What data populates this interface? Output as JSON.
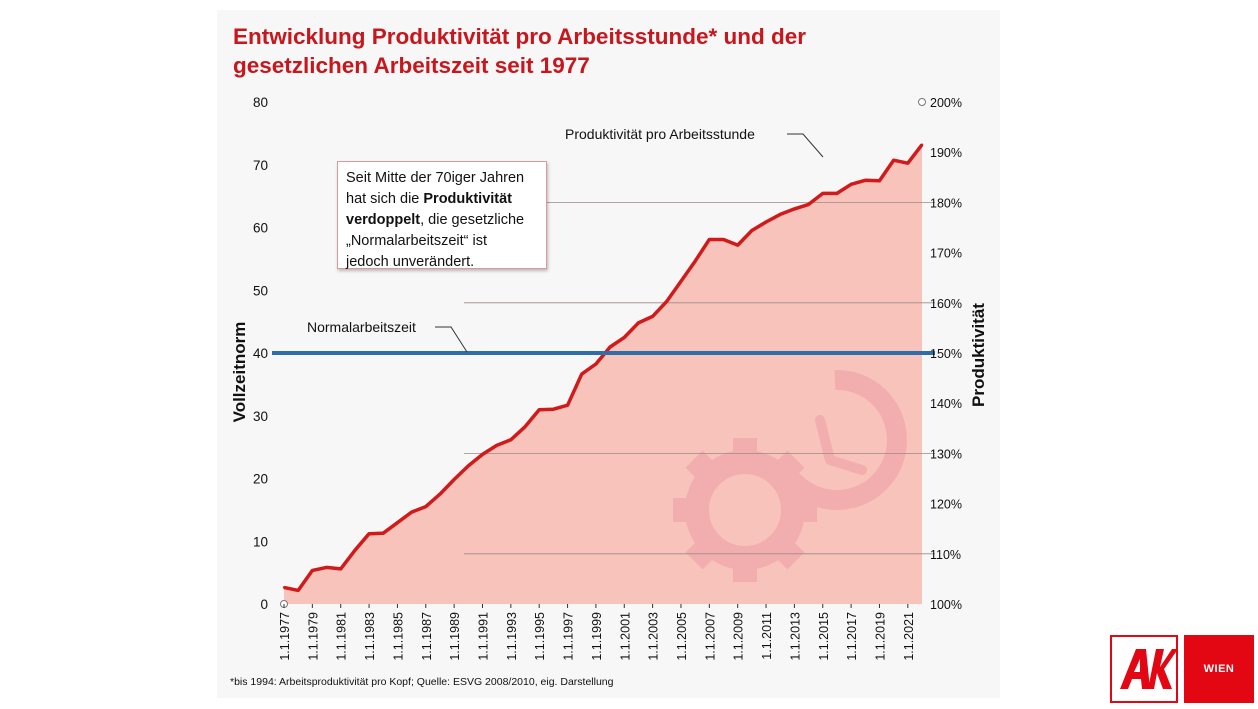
{
  "colors": {
    "title": "#c8161d",
    "productivity_line": "#d11a1a",
    "area_fill": "#f7c3bb",
    "normal_line": "#2f6ea6",
    "logo_red": "#e30613"
  },
  "logo": {
    "ak_letters": "AK",
    "wien_label": "WIEN"
  },
  "callout": {
    "line1": "Seit Mitte der 70iger Jahren",
    "line2_pre": "hat sich die ",
    "line2_bold": "Produktivität",
    "line3_bold": "verdoppelt",
    "line3_post": ", die gesetzliche",
    "line4": "„Normalarbeitszeit“ ist",
    "line5": "jedoch unverändert."
  },
  "chart_data": {
    "type": "area",
    "title": "Entwicklung Produktivität pro Arbeitsstunde* und der gesetzlichen Arbeitszeit seit 1977",
    "footnote": "*bis 1994: Arbeitsproduktivität pro Kopf; Quelle: ESVG 2008/2010, eig. Darstellung",
    "ylabel_left": "Vollzeitnorm",
    "ylabel_right": "Produktivität",
    "ylim_left": [
      0,
      80
    ],
    "ylim_right": [
      100,
      200
    ],
    "left_ticks": [
      "0",
      "10",
      "20",
      "30",
      "40",
      "50",
      "60",
      "70",
      "80"
    ],
    "right_ticks": [
      "100%",
      "110%",
      "120%",
      "130%",
      "140%",
      "150%",
      "160%",
      "170%",
      "180%",
      "190%",
      "200%"
    ],
    "x_tick_labels": [
      "1.1.1977",
      "1.1.1979",
      "1.1.1981",
      "1.1.1983",
      "1.1.1985",
      "1.1.1987",
      "1.1.1989",
      "1.1.1991",
      "1.1.1993",
      "1.1.1995",
      "1.1.1997",
      "1.1.1999",
      "1.1.2001",
      "1.1.2003",
      "1.1.2005",
      "1.1.2007",
      "1.1.2009",
      "1.1.2011",
      "1.1.2013",
      "1.1.2015",
      "1.1.2017",
      "1.1.2019",
      "1.1.2021"
    ],
    "grid": "horizontal at 110%, 130%, 160%, 180%",
    "series": [
      {
        "name": "Produktivität pro Arbeitsstunde",
        "axis": "right",
        "x": [
          1977,
          1978,
          1979,
          1980,
          1981,
          1982,
          1983,
          1984,
          1985,
          1986,
          1987,
          1988,
          1989,
          1990,
          1991,
          1992,
          1993,
          1994,
          1995,
          1996,
          1997,
          1998,
          1999,
          2000,
          2001,
          2002,
          2003,
          2004,
          2005,
          2006,
          2007,
          2008,
          2009,
          2010,
          2011,
          2012,
          2013,
          2014,
          2015,
          2016,
          2017,
          2018,
          2019,
          2020,
          2021,
          2022
        ],
        "values": [
          103.3,
          102.7,
          106.7,
          107.3,
          107.0,
          110.7,
          114.0,
          114.1,
          116.2,
          118.3,
          119.4,
          121.9,
          124.8,
          127.5,
          129.8,
          131.6,
          132.7,
          135.3,
          138.7,
          138.8,
          139.6,
          145.8,
          147.8,
          151.2,
          153.1,
          156.0,
          157.3,
          160.3,
          164.3,
          168.3,
          172.6,
          172.6,
          171.5,
          174.4,
          176.1,
          177.6,
          178.7,
          179.6,
          181.8,
          181.8,
          183.6,
          184.4,
          184.3,
          188.4,
          187.8,
          191.5
        ],
        "annotation": "Produktivität pro Arbeitsstunde"
      },
      {
        "name": "Normalarbeitszeit",
        "axis": "left",
        "x": [
          1977,
          2022
        ],
        "values": [
          40,
          40
        ],
        "annotation": "Normalarbeitszeit"
      }
    ],
    "legend": "none"
  }
}
